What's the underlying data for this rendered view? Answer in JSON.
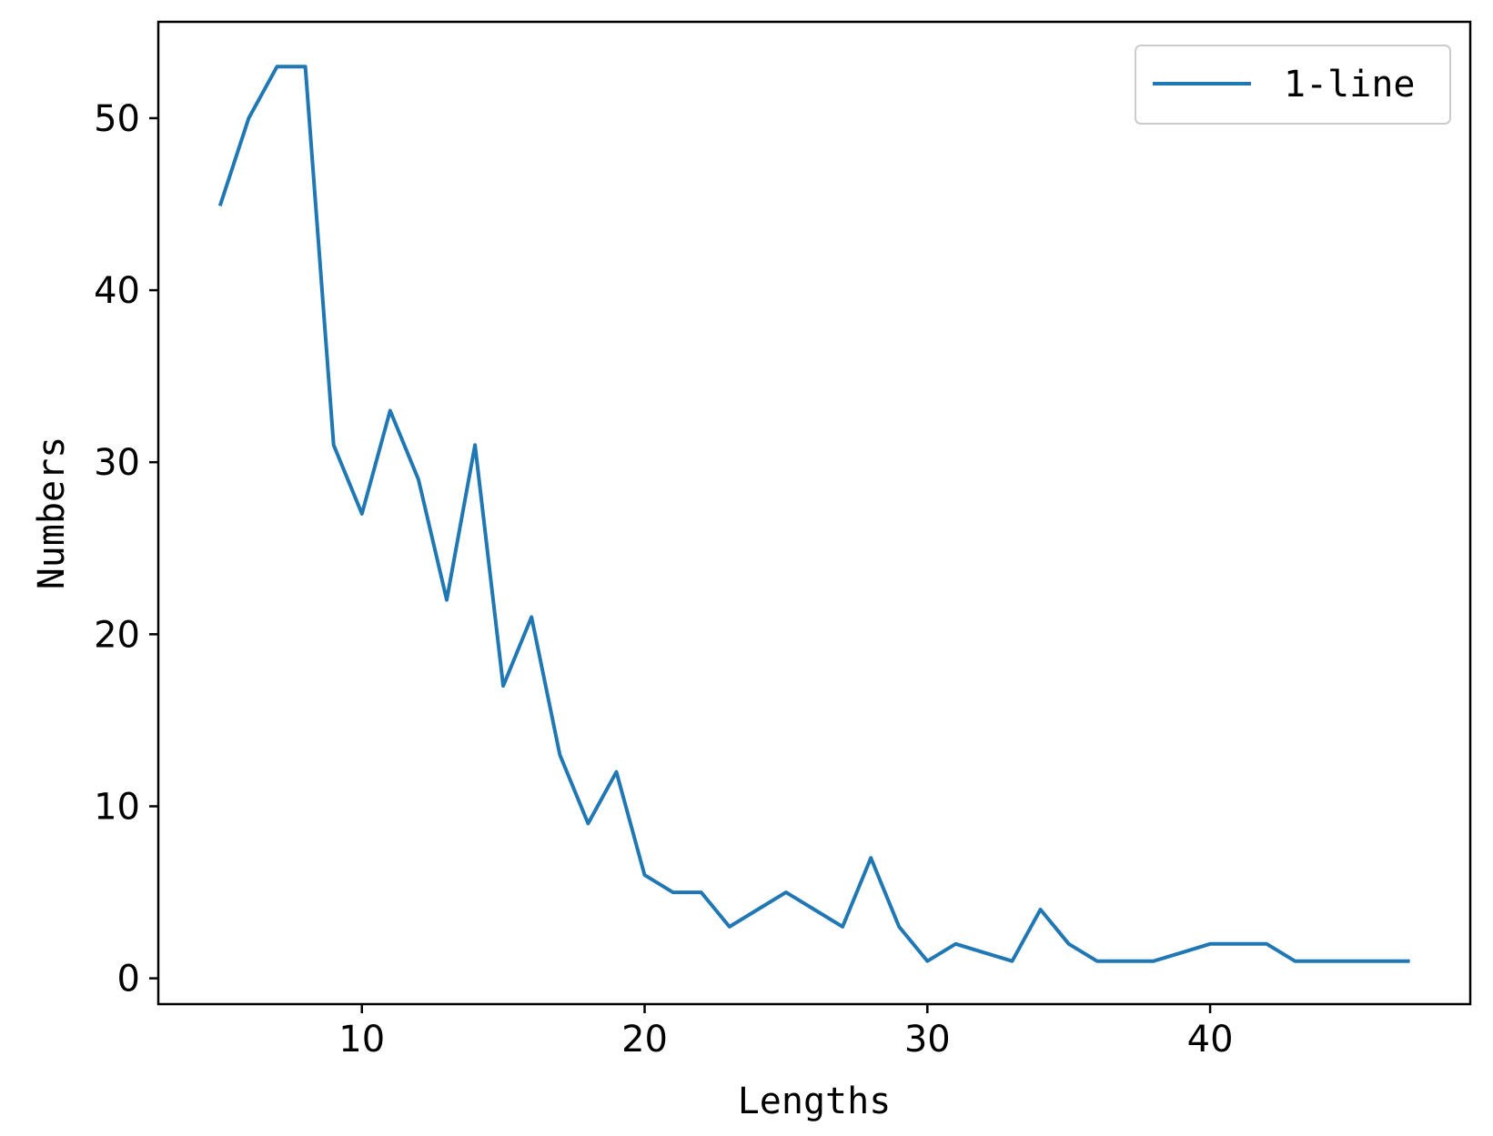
{
  "chart_data": {
    "type": "line",
    "title": "",
    "xlabel": "Lengths",
    "ylabel": "Numbers",
    "xlim": [
      2.8,
      49.2
    ],
    "ylim": [
      -1.5,
      55.6
    ],
    "xticks": [
      10,
      20,
      30,
      40
    ],
    "yticks": [
      0,
      10,
      20,
      30,
      40,
      50
    ],
    "xtick_labels": [
      "10",
      "20",
      "30",
      "40"
    ],
    "ytick_labels": [
      "0",
      "10",
      "20",
      "30",
      "40",
      "50"
    ],
    "grid": false,
    "legend_position": "upper right",
    "series": [
      {
        "name": "1-line",
        "color": "#1f77b4",
        "x": [
          5,
          6,
          7,
          8,
          9,
          10,
          11,
          12,
          13,
          14,
          15,
          16,
          17,
          18,
          19,
          20,
          21,
          22,
          23,
          24,
          25,
          26,
          27,
          28,
          29,
          30,
          31,
          32,
          33,
          34,
          35,
          36,
          37,
          38,
          39,
          40,
          41,
          42,
          43,
          44,
          45,
          46,
          47
        ],
        "y": [
          45,
          50,
          53,
          53,
          31,
          27,
          33,
          29,
          22,
          31,
          17,
          21,
          13,
          9,
          12,
          6,
          5,
          5,
          3,
          4,
          5,
          4,
          3,
          7,
          3,
          1,
          2,
          1.5,
          1,
          4,
          2,
          1,
          1,
          1,
          1.5,
          2,
          2,
          2,
          1,
          1,
          1,
          1,
          1
        ]
      }
    ]
  }
}
